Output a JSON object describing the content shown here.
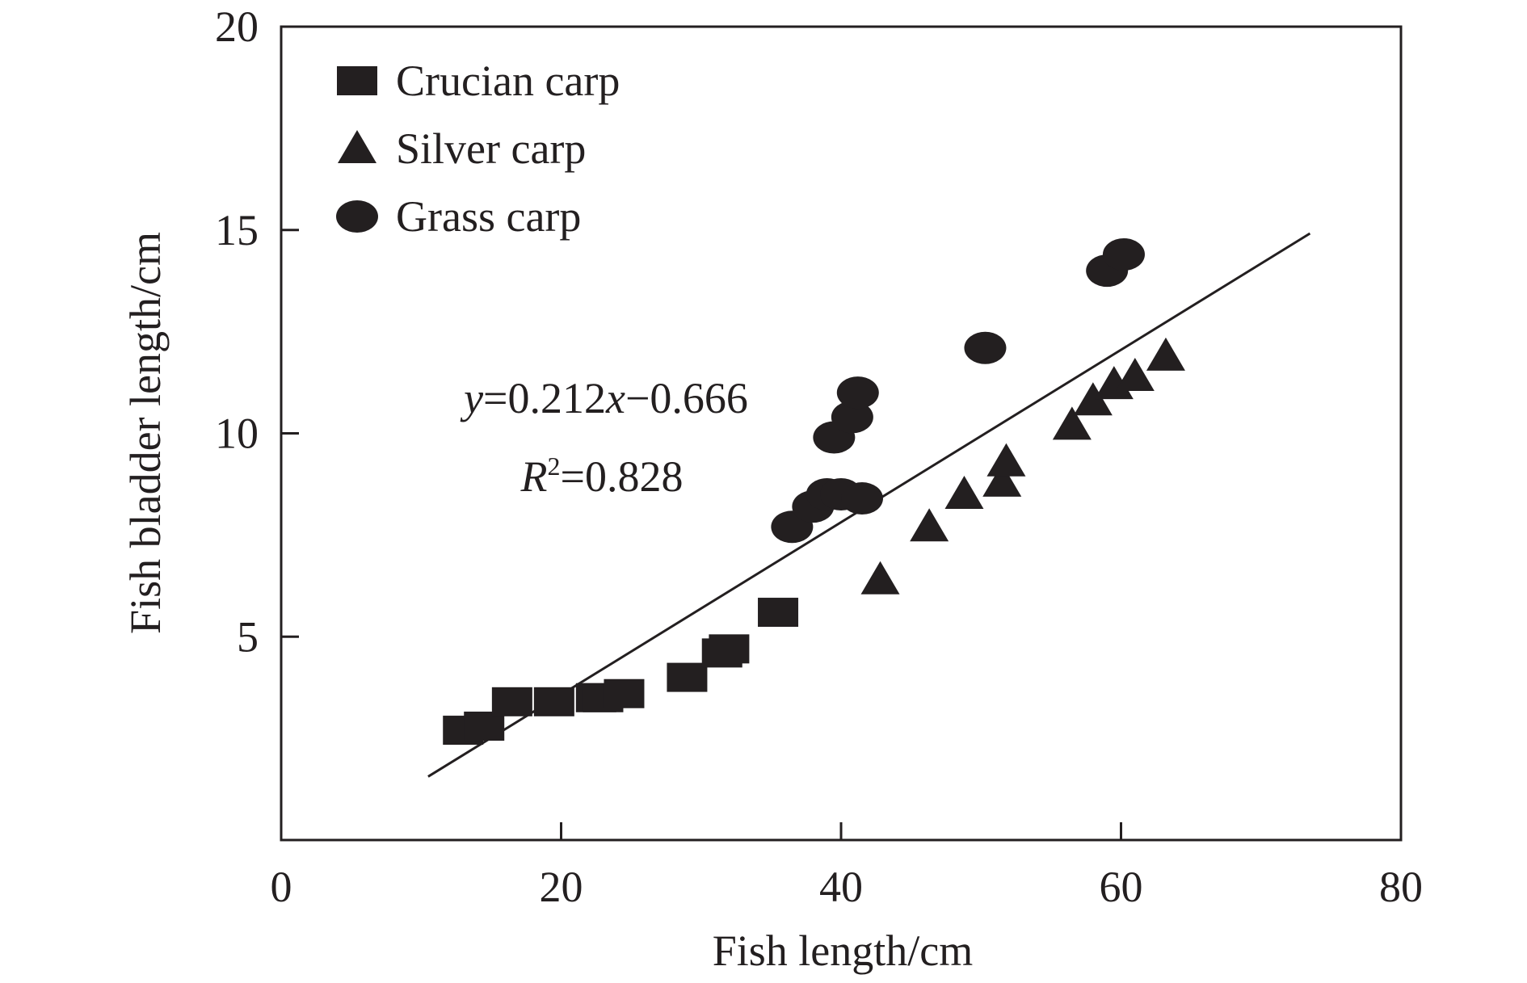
{
  "chart_data": {
    "type": "scatter",
    "xlabel": "Fish length/cm",
    "ylabel": "Fish bladder length/cm",
    "xlim": [
      0,
      80
    ],
    "ylim": [
      0,
      20
    ],
    "x_ticks": [
      "0",
      "20",
      "40",
      "60",
      "80"
    ],
    "y_ticks": [
      "5",
      "10",
      "15",
      "20"
    ],
    "legend_position": "top-left",
    "marker_color": "#231f20",
    "series": [
      {
        "name": "Crucian carp",
        "marker": "square",
        "points": [
          [
            13.0,
            2.7
          ],
          [
            14.5,
            2.8
          ],
          [
            16.5,
            3.4
          ],
          [
            19.5,
            3.4
          ],
          [
            22.5,
            3.5
          ],
          [
            23.0,
            3.5
          ],
          [
            24.5,
            3.6
          ],
          [
            29.0,
            4.0
          ],
          [
            31.5,
            4.6
          ],
          [
            32.0,
            4.7
          ],
          [
            35.5,
            5.6
          ]
        ]
      },
      {
        "name": "Silver carp",
        "marker": "triangle",
        "points": [
          [
            42.8,
            6.4
          ],
          [
            46.3,
            7.7
          ],
          [
            48.8,
            8.5
          ],
          [
            51.5,
            8.8
          ],
          [
            51.8,
            9.3
          ],
          [
            56.5,
            10.2
          ],
          [
            58.0,
            10.8
          ],
          [
            59.5,
            11.2
          ],
          [
            61.0,
            11.4
          ],
          [
            63.2,
            11.9
          ]
        ]
      },
      {
        "name": "Grass carp",
        "marker": "circle",
        "points": [
          [
            36.5,
            7.7
          ],
          [
            38.0,
            8.2
          ],
          [
            39.0,
            8.5
          ],
          [
            40.0,
            8.5
          ],
          [
            41.5,
            8.4
          ],
          [
            39.5,
            9.9
          ],
          [
            40.8,
            10.4
          ],
          [
            41.2,
            11.0
          ],
          [
            50.3,
            12.1
          ],
          [
            59.0,
            14.0
          ],
          [
            60.2,
            14.4
          ]
        ]
      }
    ],
    "fit": {
      "slope": 0.212,
      "intercept": -0.666,
      "x_range": [
        10.5,
        73.5
      ]
    },
    "annotations": {
      "eq_y": "y",
      "eq_mid": "=0.212",
      "eq_x": "x",
      "eq_rest": "−0.666",
      "r2_r": "R",
      "r2_sup": "2",
      "r2_rest": "=0.828"
    }
  }
}
